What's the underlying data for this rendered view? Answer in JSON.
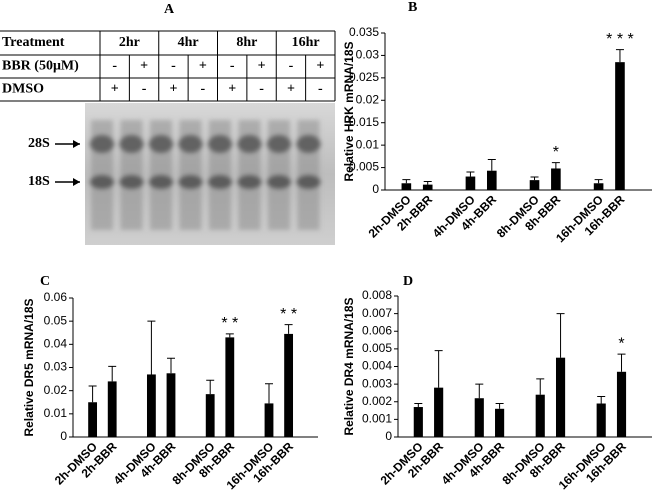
{
  "panel_a": {
    "label": "A",
    "table": {
      "rows": [
        [
          "Treatment",
          "2hr",
          "4hr",
          "8hr",
          "16hr"
        ],
        [
          "BBR (50μM)",
          "-",
          "+",
          "-",
          "+",
          "-",
          "+",
          "-",
          "+"
        ],
        [
          "DMSO",
          "+",
          "-",
          "+",
          "-",
          "+",
          "-",
          "+",
          "-"
        ]
      ]
    },
    "markers": [
      "28S",
      "18S"
    ]
  },
  "chart_data": [
    {
      "type": "bar",
      "label": "B",
      "y_label": "Relative HRK  mRNA/18S",
      "categories": [
        "2h-DMSO",
        "2h-BBR",
        "4h-DMSO",
        "4h-BBR",
        "8h-DMSO",
        "8h-BBR",
        "16h-DMSO",
        "16h-BBR"
      ],
      "values": [
        0.0015,
        0.0012,
        0.003,
        0.0043,
        0.0022,
        0.0048,
        0.0015,
        0.0285
      ],
      "errors": [
        0.0008,
        0.0007,
        0.001,
        0.0025,
        0.0007,
        0.0013,
        0.0008,
        0.0028
      ],
      "significance": [
        null,
        null,
        null,
        null,
        null,
        "*",
        null,
        "* * *"
      ],
      "color": "#000000",
      "ylim": [
        0,
        0.035
      ],
      "yticks": [
        0,
        0.005,
        0.01,
        0.015,
        0.02,
        0.025,
        0.03,
        0.035
      ]
    },
    {
      "type": "bar",
      "label": "C",
      "y_label": "Relative DR5 mRNA/18S",
      "categories": [
        "2h-DMSO",
        "2h-BBR",
        "4h-DMSO",
        "4h-BBR",
        "8h-DMSO",
        "8h-BBR",
        "16h-DMSO",
        "16h-BBR"
      ],
      "values": [
        0.015,
        0.024,
        0.027,
        0.0275,
        0.0185,
        0.043,
        0.0145,
        0.0445
      ],
      "errors": [
        0.007,
        0.0065,
        0.023,
        0.0065,
        0.006,
        0.0015,
        0.0085,
        0.004
      ],
      "significance": [
        null,
        null,
        null,
        null,
        null,
        "* *",
        null,
        "* *"
      ],
      "color": "#000000",
      "ylim": [
        0,
        0.06
      ],
      "yticks": [
        0,
        0.01,
        0.02,
        0.03,
        0.04,
        0.05,
        0.06
      ]
    },
    {
      "type": "bar",
      "label": "D",
      "y_label": "Relative DR4 mRNA/18S",
      "categories": [
        "2h-DMSO",
        "2h-BBR",
        "4h-DMSO",
        "4h-BBR",
        "8h-DMSO",
        "8h-BBR",
        "16h-DMSO",
        "16h-BBR"
      ],
      "values": [
        0.0017,
        0.0028,
        0.0022,
        0.0016,
        0.0024,
        0.0045,
        0.0019,
        0.0037
      ],
      "errors": [
        0.0002,
        0.0021,
        0.0008,
        0.0003,
        0.0009,
        0.0025,
        0.0004,
        0.001
      ],
      "significance": [
        null,
        null,
        null,
        null,
        null,
        null,
        null,
        "*"
      ],
      "color": "#000000",
      "ylim": [
        0,
        0.008
      ],
      "yticks": [
        0,
        0.001,
        0.002,
        0.003,
        0.004,
        0.005,
        0.006,
        0.007,
        0.008
      ]
    }
  ]
}
